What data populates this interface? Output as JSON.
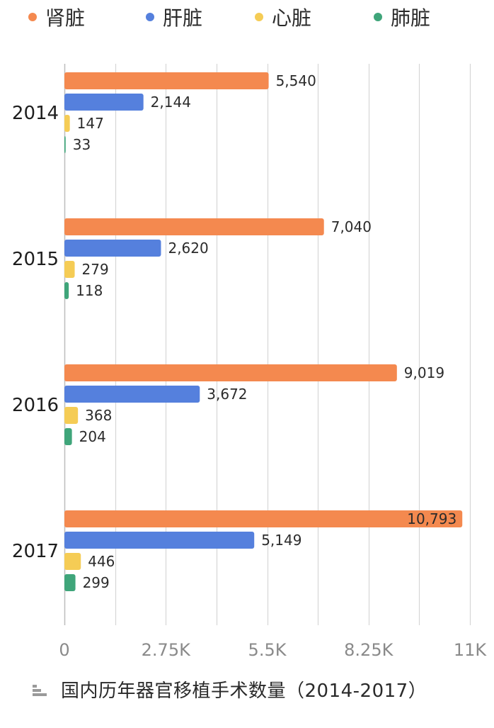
{
  "chart_data": {
    "type": "bar",
    "orientation": "horizontal",
    "categories": [
      "2014",
      "2015",
      "2016",
      "2017"
    ],
    "series": [
      {
        "name": "肾脏",
        "color": "#f4894f",
        "values": [
          5540,
          7040,
          9019,
          10793
        ],
        "labels": [
          "5,540",
          "7,040",
          "9,019",
          "10,793"
        ]
      },
      {
        "name": "肝脏",
        "color": "#5580dd",
        "values": [
          2144,
          2620,
          3672,
          5149
        ],
        "labels": [
          "2,144",
          "2,620",
          "3,672",
          "5,149"
        ]
      },
      {
        "name": "心脏",
        "color": "#f5cc55",
        "values": [
          147,
          279,
          368,
          446
        ],
        "labels": [
          "147",
          "279",
          "368",
          "446"
        ]
      },
      {
        "name": "肺脏",
        "color": "#3fa57a",
        "values": [
          33,
          118,
          204,
          299
        ],
        "labels": [
          "33",
          "118",
          "204",
          "299"
        ]
      }
    ],
    "xlim": [
      0,
      11000
    ],
    "xticks": [
      0,
      2750,
      5500,
      8250,
      11000
    ],
    "xtick_labels": [
      "0",
      "2.75K",
      "5.5K",
      "8.25K",
      "11K"
    ],
    "grid": true,
    "legend_position": "top",
    "caption": "国内历年器官移植手术数量（2014-2017）",
    "caption_icon": "bar-chart-icon"
  }
}
